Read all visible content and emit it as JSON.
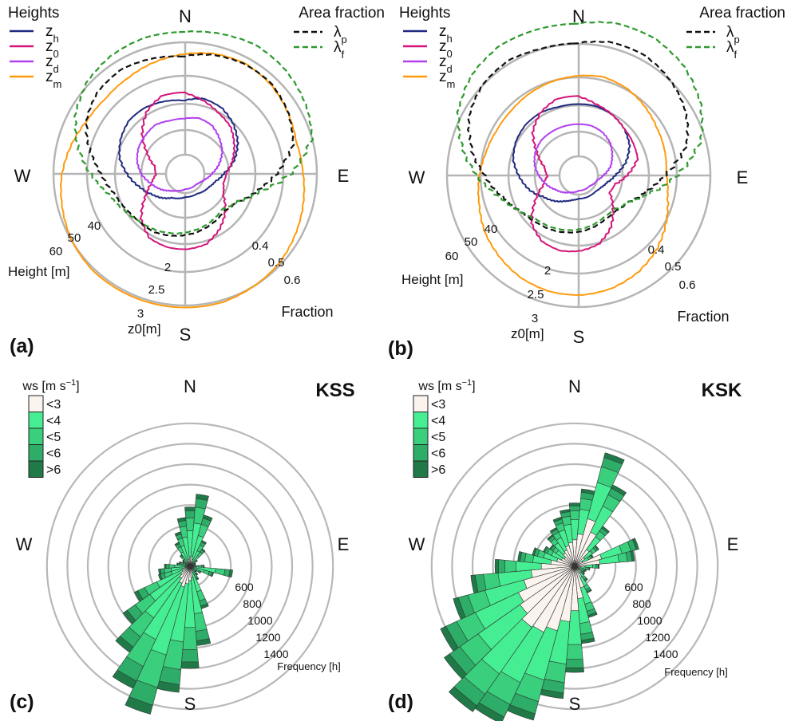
{
  "chart_data": [
    {
      "panel": "(a)",
      "type": "polar-line",
      "legend_heights_title": "Heights",
      "legend_area_title": "Area fraction",
      "compass": [
        "N",
        "E",
        "S",
        "W"
      ],
      "height_axis_label": "Height [m]",
      "height_ticks": [
        40,
        50,
        60
      ],
      "z0_axis_label": "z0[m]",
      "z0_ticks": [
        "2",
        "2.5",
        "3"
      ],
      "fraction_axis_label": "Fraction",
      "fraction_ticks": [
        "0.4",
        "0.5",
        "0.6"
      ],
      "series": [
        {
          "name": "zh",
          "kind": "height",
          "color": "#1f2a80",
          "dash": "solid",
          "radius_by_direction": [
            31,
            33,
            32,
            29,
            25,
            20,
            14,
            10,
            8,
            7,
            6,
            6,
            6,
            7,
            8,
            11,
            14,
            18,
            23,
            28,
            31,
            33,
            33,
            32
          ]
        },
        {
          "name": "z0",
          "kind": "height",
          "color": "#d3157a",
          "dash": "solid",
          "radius_by_direction": [
            35,
            32,
            29,
            27,
            23,
            19,
            15,
            14,
            16,
            22,
            27,
            31,
            32,
            32,
            31,
            26,
            18,
            12,
            9,
            10,
            16,
            24,
            31,
            35
          ]
        },
        {
          "name": "zd",
          "kind": "height",
          "color": "#b040ee",
          "dash": "solid",
          "radius_by_direction": [
            22,
            23,
            22,
            19,
            16,
            12,
            8,
            5,
            3,
            2,
            2,
            2,
            2,
            3,
            4,
            6,
            9,
            12,
            16,
            19,
            21,
            22,
            23,
            22
          ]
        },
        {
          "name": "zm",
          "kind": "height",
          "color": "#ff9a0c",
          "dash": "solid",
          "radius_by_direction": [
            54,
            56,
            57,
            56,
            54,
            52,
            53,
            55,
            57,
            59,
            60,
            61,
            61,
            61,
            61,
            61,
            60,
            58,
            56,
            53,
            50,
            49,
            50,
            52
          ]
        },
        {
          "name": "λp",
          "kind": "fraction",
          "color": "#111111",
          "dash": "dashed",
          "radius_by_direction": [
            0.6,
            0.62,
            0.63,
            0.63,
            0.61,
            0.58,
            0.5,
            0.42,
            0.36,
            0.34,
            0.35,
            0.36,
            0.37,
            0.38,
            0.39,
            0.39,
            0.4,
            0.42,
            0.46,
            0.52,
            0.58,
            0.61,
            0.62,
            0.61
          ]
        },
        {
          "name": "λf",
          "kind": "fraction",
          "color": "#2e9a2e",
          "dash": "dashed",
          "radius_by_direction": [
            0.7,
            0.71,
            0.72,
            0.71,
            0.69,
            0.66,
            0.56,
            0.43,
            0.36,
            0.33,
            0.34,
            0.35,
            0.36,
            0.37,
            0.38,
            0.39,
            0.41,
            0.44,
            0.5,
            0.57,
            0.63,
            0.67,
            0.69,
            0.7
          ]
        }
      ]
    },
    {
      "panel": "(b)",
      "type": "polar-line",
      "legend_heights_title": "Heights",
      "legend_area_title": "Area fraction",
      "compass": [
        "N",
        "E",
        "S",
        "W"
      ],
      "height_axis_label": "Height [m]",
      "height_ticks": [
        40,
        50,
        60
      ],
      "z0_axis_label": "z0[m]",
      "z0_ticks": [
        "2",
        "2.5",
        "3"
      ],
      "fraction_axis_label": "Fraction",
      "fraction_ticks": [
        "0.4",
        "0.5",
        "0.6"
      ],
      "series": [
        {
          "name": "zh",
          "kind": "height",
          "color": "#1f2a80",
          "dash": "solid",
          "radius_by_direction": [
            30,
            30,
            29,
            27,
            24,
            19,
            13,
            9,
            7,
            6,
            6,
            6,
            6,
            7,
            9,
            12,
            15,
            20,
            24,
            28,
            30,
            31,
            31,
            30
          ]
        },
        {
          "name": "z0",
          "kind": "height",
          "color": "#d3157a",
          "dash": "solid",
          "radius_by_direction": [
            34,
            31,
            29,
            27,
            26,
            25,
            19,
            13,
            12,
            18,
            25,
            30,
            32,
            33,
            32,
            28,
            20,
            13,
            10,
            12,
            18,
            26,
            31,
            34
          ]
        },
        {
          "name": "zd",
          "kind": "height",
          "color": "#b040ee",
          "dash": "solid",
          "radius_by_direction": [
            20,
            20,
            19,
            17,
            14,
            11,
            7,
            4,
            3,
            2,
            2,
            2,
            2,
            3,
            4,
            6,
            8,
            11,
            14,
            17,
            19,
            20,
            20,
            20
          ]
        },
        {
          "name": "zm",
          "kind": "height",
          "color": "#ff9a0c",
          "dash": "solid",
          "radius_by_direction": [
            44,
            45,
            44,
            42,
            40,
            39,
            38,
            40,
            44,
            48,
            51,
            53,
            54,
            54,
            53,
            51,
            49,
            46,
            44,
            42,
            41,
            41,
            42,
            43
          ]
        },
        {
          "name": "λp",
          "kind": "fraction",
          "color": "#111111",
          "dash": "dashed",
          "radius_by_direction": [
            0.66,
            0.68,
            0.68,
            0.66,
            0.63,
            0.58,
            0.48,
            0.4,
            0.35,
            0.33,
            0.33,
            0.34,
            0.35,
            0.36,
            0.37,
            0.38,
            0.4,
            0.44,
            0.5,
            0.57,
            0.63,
            0.66,
            0.67,
            0.66
          ]
        },
        {
          "name": "λf",
          "kind": "fraction",
          "color": "#2e9a2e",
          "dash": "dashed",
          "radius_by_direction": [
            0.74,
            0.76,
            0.76,
            0.74,
            0.7,
            0.64,
            0.53,
            0.42,
            0.35,
            0.32,
            0.32,
            0.33,
            0.34,
            0.35,
            0.36,
            0.37,
            0.4,
            0.45,
            0.53,
            0.61,
            0.68,
            0.72,
            0.74,
            0.74
          ]
        }
      ]
    },
    {
      "panel": "(c)",
      "type": "wind-rose",
      "title": "KSS",
      "compass": [
        "N",
        "E",
        "S",
        "W"
      ],
      "legend_title": "ws [m s-1]",
      "speed_bins": [
        "<3",
        "<4",
        "<5",
        "<6",
        ">6"
      ],
      "bin_colors": [
        "#fbf3ee",
        "#46ee93",
        "#39cf7c",
        "#2dad67",
        "#1f7a48"
      ],
      "radial_axis_label": "Frequency [h]",
      "radial_ticks": [
        600,
        800,
        1000,
        1200,
        1400
      ],
      "radial_ticks_all": [
        200,
        400,
        600,
        800,
        1000,
        1200,
        1400
      ],
      "sectors": 36,
      "sector_totals_h": [
        580,
        710,
        520,
        280,
        210,
        90,
        60,
        50,
        60,
        140,
        420,
        240,
        120,
        80,
        110,
        150,
        430,
        780,
        1000,
        1240,
        1500,
        1320,
        1030,
        800,
        600,
        320,
        310,
        250,
        130,
        110,
        80,
        90,
        140,
        260,
        350,
        480
      ],
      "bin_fractions": [
        0.14,
        0.46,
        0.22,
        0.12,
        0.06
      ]
    },
    {
      "panel": "(d)",
      "type": "wind-rose",
      "title": "KSK",
      "compass": [
        "N",
        "E",
        "S",
        "W"
      ],
      "legend_title": "ws [m s-1]",
      "speed_bins": [
        "<3",
        "<4",
        "<5",
        "<6",
        ">6"
      ],
      "bin_colors": [
        "#fbf3ee",
        "#46ee93",
        "#39cf7c",
        "#2dad67",
        "#1f7a48"
      ],
      "radial_axis_label": "Frequency [h]",
      "radial_ticks": [
        600,
        800,
        1000,
        1200,
        1400
      ],
      "radial_ticks_all": [
        200,
        400,
        600,
        800,
        1000,
        1200,
        1400
      ],
      "sectors": 36,
      "sector_totals_h": [
        620,
        760,
        1150,
        880,
        480,
        290,
        200,
        650,
        590,
        240,
        150,
        120,
        110,
        120,
        180,
        290,
        520,
        760,
        1040,
        1300,
        1560,
        1700,
        1740,
        1560,
        1450,
        1230,
        1020,
        780,
        560,
        430,
        340,
        300,
        380,
        420,
        500,
        560
      ],
      "bin_fractions": [
        0.42,
        0.32,
        0.14,
        0.08,
        0.04
      ]
    }
  ],
  "panel_labels": [
    "(a)",
    "(b)",
    "(c)",
    "(d)"
  ]
}
